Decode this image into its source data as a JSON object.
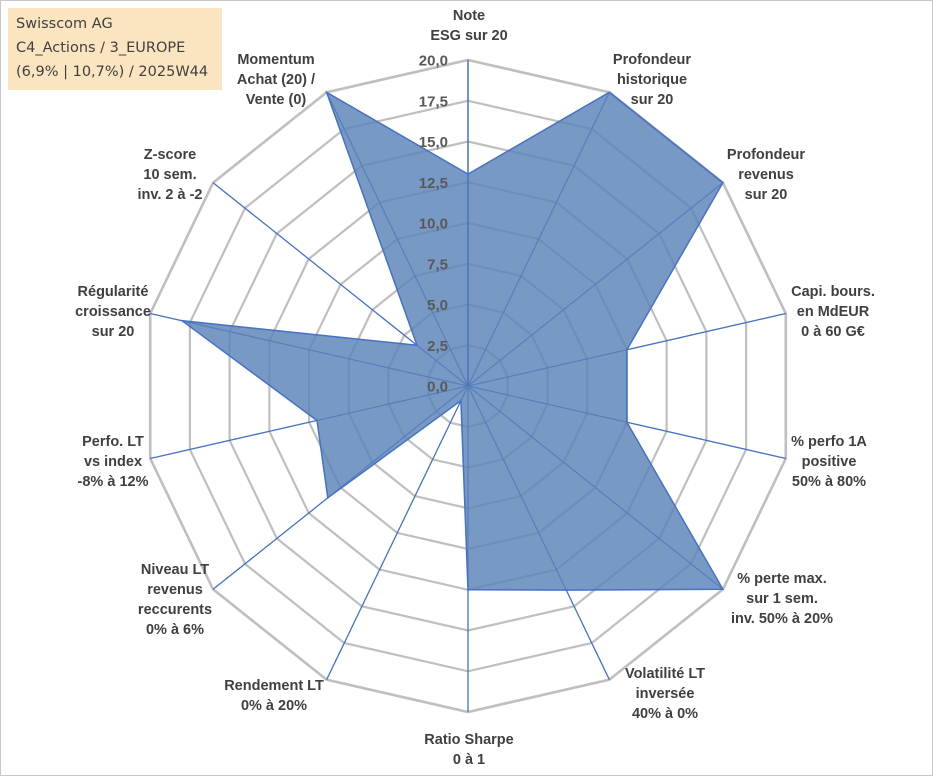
{
  "info_box": {
    "line1": "Swisscom AG",
    "line2": "C4_Actions / 3_EUROPE",
    "line3": "(6,9% | 10,7%) / 2025W44",
    "background": "#fbe5c0"
  },
  "colors": {
    "fill": "#5b82b8",
    "stroke": "#4472c4",
    "grid": "#bfbfbf",
    "text": "#404040"
  },
  "chart_data": {
    "type": "radar",
    "title": "",
    "rlim": [
      0,
      20
    ],
    "ticks": [
      "0,0",
      "2,5",
      "5,0",
      "7,5",
      "10,0",
      "12,5",
      "15,0",
      "17,5",
      "20,0"
    ],
    "tick_values": [
      0,
      2.5,
      5,
      7.5,
      10,
      12.5,
      15,
      17.5,
      20
    ],
    "categories": [
      [
        "Note",
        "ESG sur 20"
      ],
      [
        "Profondeur",
        "historique",
        "sur 20"
      ],
      [
        "Profondeur",
        "revenus",
        "sur 20"
      ],
      [
        "Capi. bours.",
        "en MdEUR",
        "0 à 60 G€"
      ],
      [
        "% perfo 1A",
        "positive",
        "50% à 80%"
      ],
      [
        "% perte max.",
        "sur 1 sem.",
        "inv. 50% à 20%"
      ],
      [
        "Volatilité LT",
        "inversée",
        "40% à 0%"
      ],
      [
        "Ratio Sharpe",
        "0 à 1"
      ],
      [
        "Rendement LT",
        "0% à 20%"
      ],
      [
        "Niveau LT",
        "revenus",
        "reccurents",
        "0% à 6%"
      ],
      [
        "Perfo. LT",
        "vs index",
        "-8% à 12%"
      ],
      [
        "Régularité",
        "croissance",
        "sur 20"
      ],
      [
        "Z-score",
        "10 sem.",
        "inv. 2 à -2"
      ],
      [
        "Momentum",
        "Achat (20) /",
        "Vente (0)"
      ]
    ],
    "series": [
      {
        "name": "Swisscom AG",
        "values": [
          13,
          20,
          20,
          10,
          10,
          20,
          13.9,
          12.5,
          1,
          11,
          9.5,
          18,
          4,
          20
        ]
      }
    ]
  }
}
